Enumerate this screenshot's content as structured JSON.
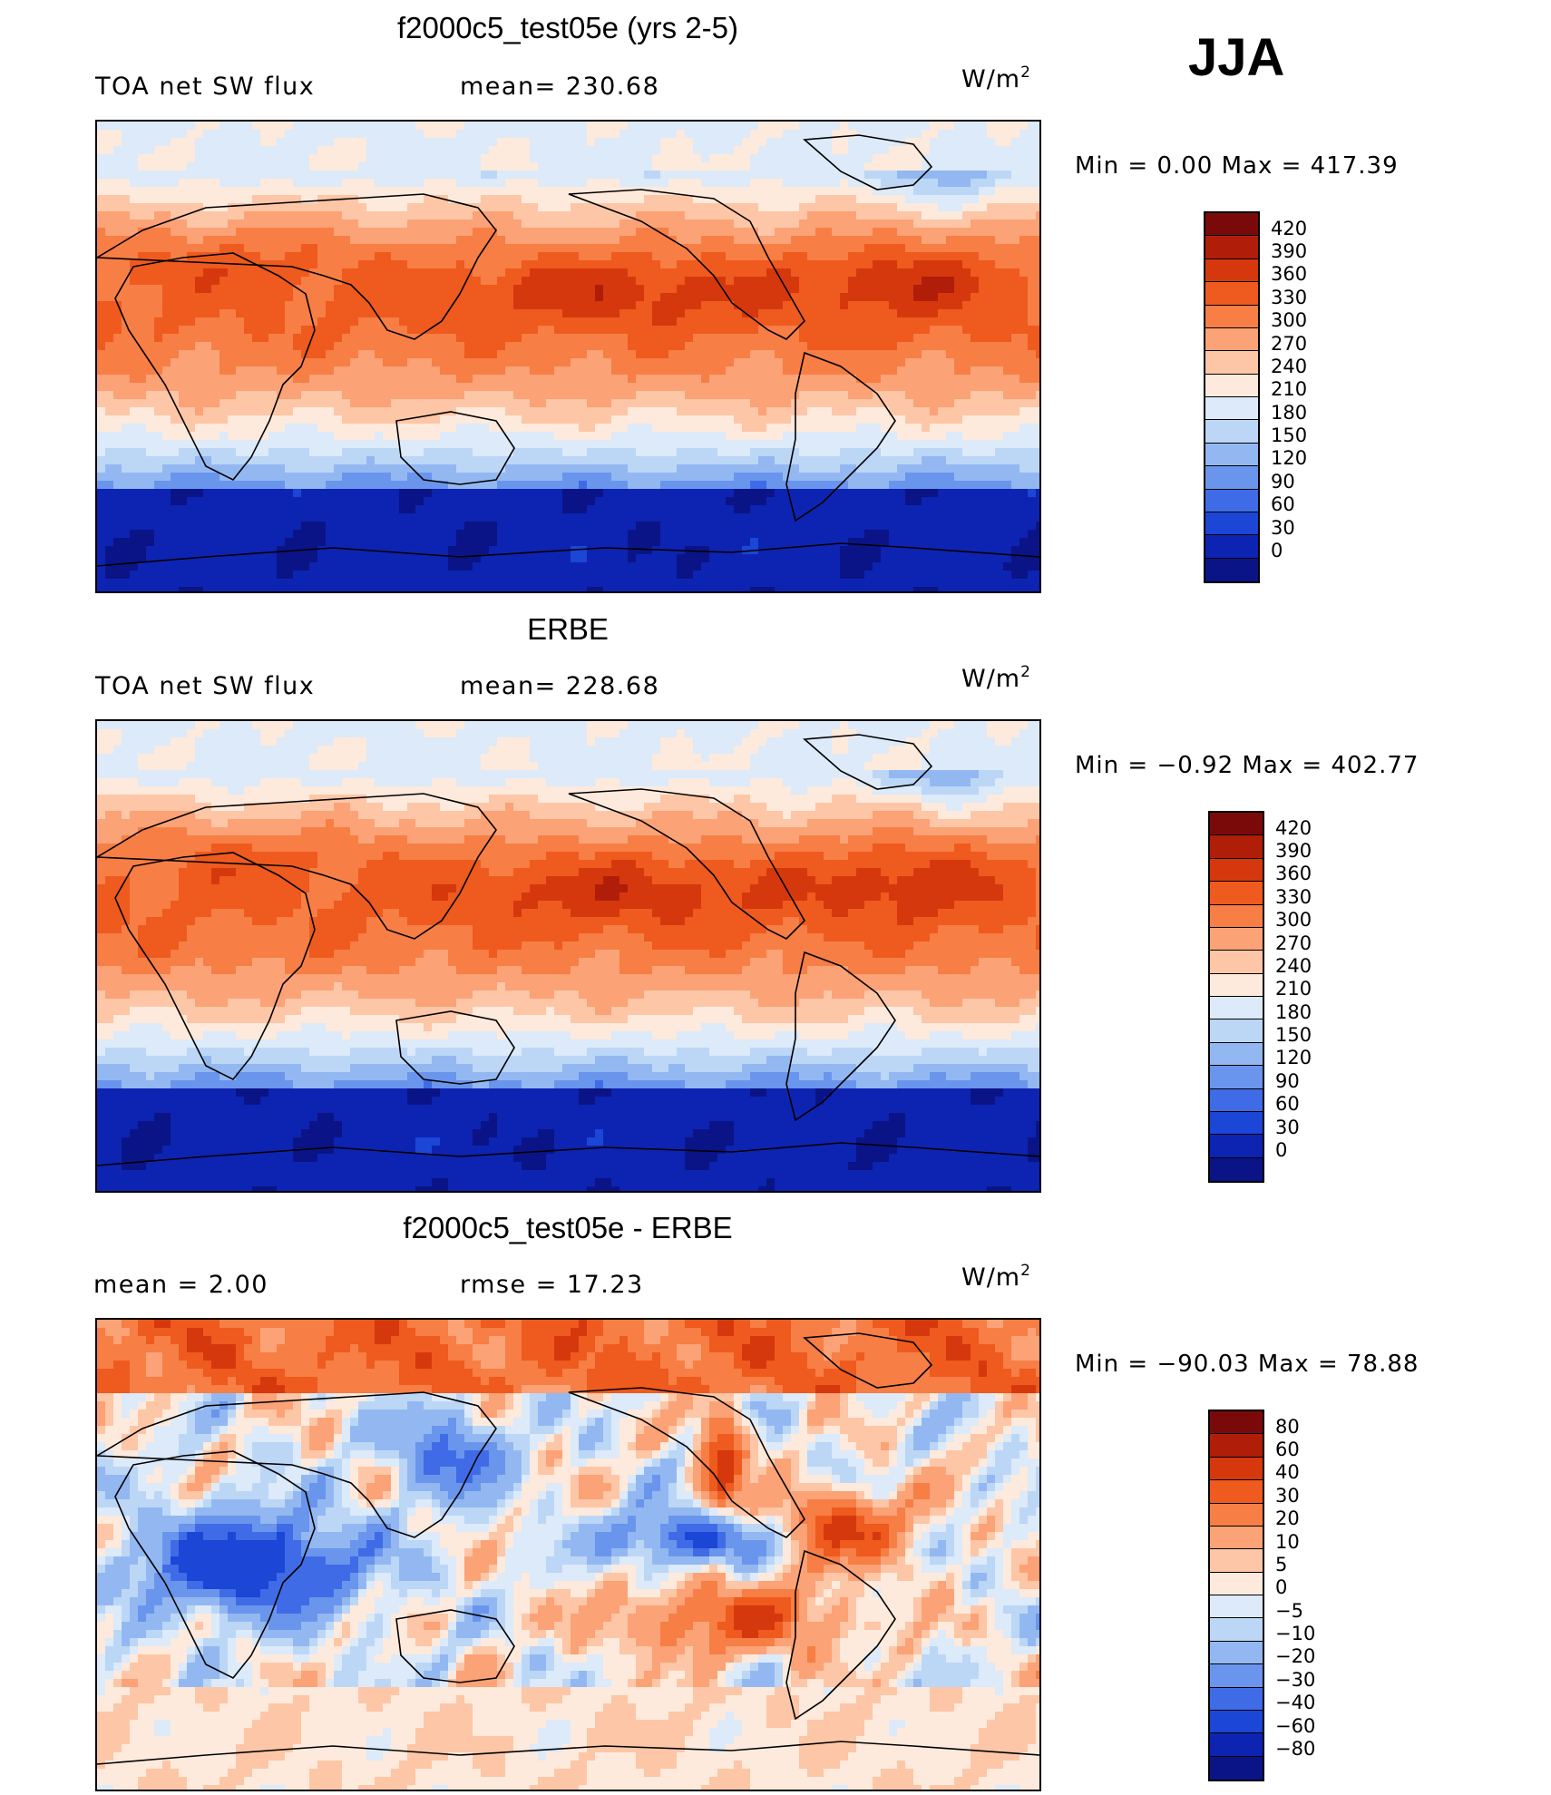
{
  "season": "JJA",
  "panels": [
    {
      "title": "f2000c5_test05e (yrs 2-5)",
      "left_label": "TOA net SW flux",
      "mid_label": "mean= 230.68",
      "units": "W/m",
      "units_sup": "2",
      "minmax": "Min =    0.00  Max =  417.39",
      "colorbar": {
        "labels": [
          "420",
          "390",
          "360",
          "330",
          "300",
          "270",
          "240",
          "210",
          "180",
          "150",
          "120",
          "90",
          "60",
          "30",
          "0"
        ],
        "colors": [
          "#7a0a0a",
          "#b01e0a",
          "#d6380e",
          "#ef5a1e",
          "#f77e45",
          "#fba276",
          "#fdc6a6",
          "#fdeadc",
          "#dceaf9",
          "#bcd6f6",
          "#93b8f1",
          "#6a95ec",
          "#3f6ce6",
          "#1b46d6",
          "#0d24b2",
          "#0a1486"
        ]
      }
    },
    {
      "title": "ERBE",
      "left_label": "TOA net SW flux",
      "mid_label": "mean= 228.68",
      "units": "W/m",
      "units_sup": "2",
      "minmax": "Min =   −0.92  Max =  402.77",
      "colorbar": {
        "labels": [
          "420",
          "390",
          "360",
          "330",
          "300",
          "270",
          "240",
          "210",
          "180",
          "150",
          "120",
          "90",
          "60",
          "30",
          "0"
        ],
        "colors": [
          "#7a0a0a",
          "#b01e0a",
          "#d6380e",
          "#ef5a1e",
          "#f77e45",
          "#fba276",
          "#fdc6a6",
          "#fdeadc",
          "#dceaf9",
          "#bcd6f6",
          "#93b8f1",
          "#6a95ec",
          "#3f6ce6",
          "#1b46d6",
          "#0d24b2",
          "#0a1486"
        ]
      }
    },
    {
      "title": "f2000c5_test05e - ERBE",
      "left_label": "mean =     2.00",
      "mid_label": "rmse =    17.23",
      "units": "W/m",
      "units_sup": "2",
      "minmax": "Min = −90.03  Max =   78.88",
      "colorbar": {
        "labels": [
          "80",
          "60",
          "40",
          "30",
          "20",
          "10",
          "5",
          "0",
          "−5",
          "−10",
          "−20",
          "−30",
          "−40",
          "−60",
          "−80"
        ],
        "colors": [
          "#7a0a0a",
          "#b01e0a",
          "#d6380e",
          "#ef5a1e",
          "#f77e45",
          "#fba276",
          "#fdc6a6",
          "#fdeadc",
          "#dceaf9",
          "#bcd6f6",
          "#93b8f1",
          "#6a95ec",
          "#3f6ce6",
          "#1b46d6",
          "#0d24b2",
          "#0a1486"
        ]
      }
    }
  ],
  "chart_data": [
    {
      "type": "heatmap",
      "title": "f2000c5_test05e (yrs 2-5)",
      "variable": "TOA net SW flux",
      "season": "JJA",
      "units": "W/m2",
      "mean": 230.68,
      "min": 0.0,
      "max": 417.39,
      "contour_levels": [
        0,
        30,
        60,
        90,
        120,
        150,
        180,
        210,
        240,
        270,
        300,
        330,
        360,
        390,
        420
      ]
    },
    {
      "type": "heatmap",
      "title": "ERBE",
      "variable": "TOA net SW flux",
      "season": "JJA",
      "units": "W/m2",
      "mean": 228.68,
      "min": -0.92,
      "max": 402.77,
      "contour_levels": [
        0,
        30,
        60,
        90,
        120,
        150,
        180,
        210,
        240,
        270,
        300,
        330,
        360,
        390,
        420
      ]
    },
    {
      "type": "heatmap",
      "title": "f2000c5_test05e - ERBE",
      "season": "JJA",
      "units": "W/m2",
      "mean": 2.0,
      "rmse": 17.23,
      "min": -90.03,
      "max": 78.88,
      "contour_levels": [
        -80,
        -60,
        -40,
        -30,
        -20,
        -10,
        -5,
        0,
        5,
        10,
        20,
        30,
        40,
        60,
        80
      ]
    }
  ]
}
